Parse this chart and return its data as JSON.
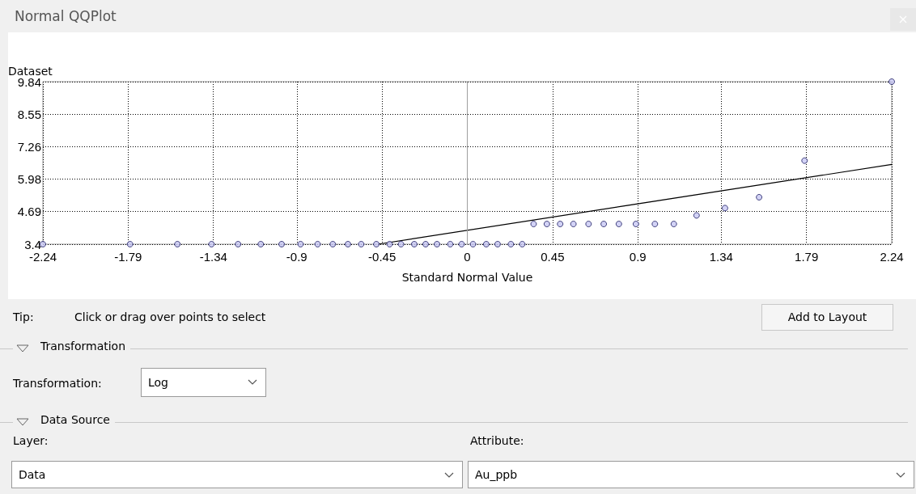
{
  "chart_data": {
    "type": "scatter",
    "title": "Normal QQPlot",
    "xlabel": "Standard Normal Value",
    "ylabel": "Dataset",
    "xlim": [
      -2.24,
      2.24
    ],
    "xticks": [
      -2.24,
      -1.79,
      -1.34,
      -0.9,
      -0.45,
      0,
      0.45,
      0.9,
      1.34,
      1.79,
      2.24
    ],
    "ylim": [
      3.4,
      9.84
    ],
    "yticks": [
      3.4,
      4.69,
      5.98,
      7.26,
      8.55,
      9.84
    ],
    "grid": true,
    "marker": "circle",
    "series": [
      {
        "type": "scatter",
        "color": "#c8c8f4",
        "x": [
          -2.24,
          -1.78,
          -1.53,
          -1.35,
          -1.21,
          -1.09,
          -0.98,
          -0.88,
          -0.79,
          -0.71,
          -0.63,
          -0.56,
          -0.48,
          -0.41,
          -0.35,
          -0.28,
          -0.22,
          -0.16,
          -0.09,
          -0.03,
          0.03,
          0.1,
          0.16,
          0.23,
          0.29,
          0.35,
          0.42,
          0.49,
          0.56,
          0.64,
          0.72,
          0.8,
          0.89,
          0.99,
          1.09,
          1.21,
          1.36,
          1.54,
          1.78,
          2.24
        ],
        "values": [
          3.4,
          3.4,
          3.4,
          3.4,
          3.4,
          3.4,
          3.4,
          3.4,
          3.4,
          3.4,
          3.4,
          3.4,
          3.4,
          3.4,
          3.4,
          3.4,
          3.4,
          3.4,
          3.4,
          3.4,
          3.4,
          3.4,
          3.4,
          3.4,
          3.4,
          4.2,
          4.2,
          4.2,
          4.2,
          4.2,
          4.2,
          4.2,
          4.2,
          4.2,
          4.2,
          4.54,
          4.83,
          5.26,
          6.71,
          9.84
        ]
      },
      {
        "type": "line",
        "color": "#000000",
        "line_style": "solid",
        "marker": "none",
        "x": [
          -0.47,
          2.24
        ],
        "values": [
          3.4,
          6.56
        ]
      }
    ],
    "ref_lines": [
      {
        "axis": "x",
        "value": 0,
        "label": null,
        "color": "#a0a0a0",
        "line_style": "solid"
      }
    ],
    "annotations": [
      "Tip:",
      "Click or drag over points to select",
      "Add to Layout",
      "Transformation",
      "Transformation:",
      "Log",
      "Data Source",
      "Layer:",
      "Data",
      "Attribute:",
      "Au_ppb"
    ]
  }
}
